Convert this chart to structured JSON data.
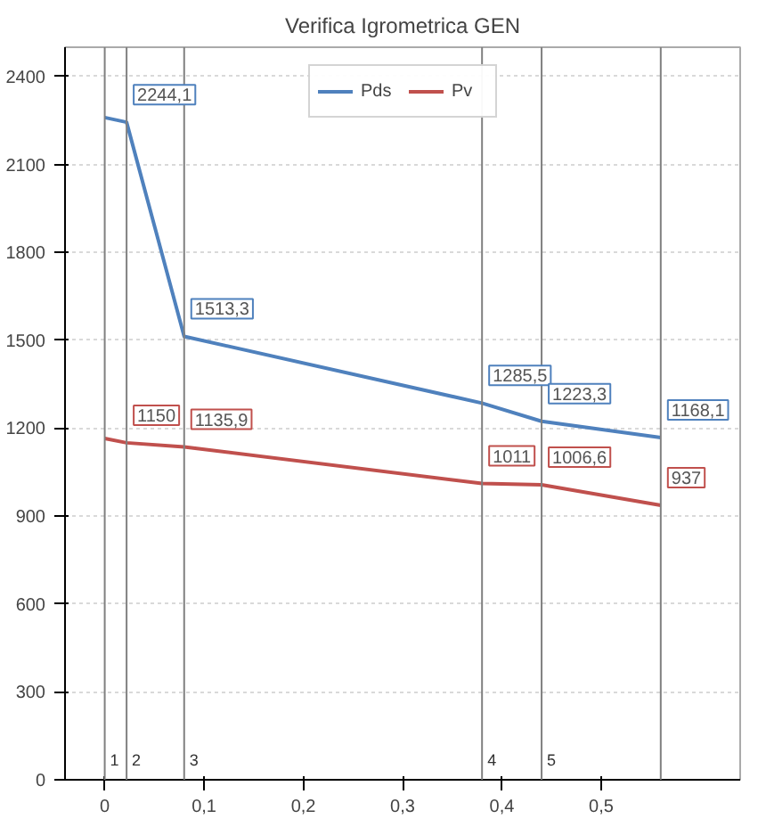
{
  "chart_data": {
    "type": "line",
    "title": "Verifica Igrometrica GEN",
    "x": [
      0,
      0.022,
      0.08,
      0.38,
      0.44,
      0.56
    ],
    "series": [
      {
        "name": "Pds",
        "color": "#4f81bd",
        "values": [
          2260,
          2244.1,
          1513.3,
          1285.5,
          1223.3,
          1168.1
        ],
        "value_labels": [
          null,
          "2244,1",
          "1513,3",
          "1285,5",
          "1223,3",
          "1168,1"
        ]
      },
      {
        "name": "Pv",
        "color": "#c0504d",
        "values": [
          1165,
          1150,
          1135.9,
          1011,
          1006.6,
          937
        ],
        "value_labels": [
          null,
          "1150",
          "1135,9",
          "1011",
          "1006,6",
          "937"
        ]
      }
    ],
    "xlim": [
      -0.04,
      0.64
    ],
    "ylim": [
      0,
      2500
    ],
    "xticks": [
      {
        "value": 0,
        "label": "0"
      },
      {
        "value": 0.1,
        "label": "0,1"
      },
      {
        "value": 0.2,
        "label": "0,2"
      },
      {
        "value": 0.3,
        "label": "0,3"
      },
      {
        "value": 0.4,
        "label": "0,4"
      },
      {
        "value": 0.5,
        "label": "0,5"
      }
    ],
    "yticks": [
      0,
      300,
      600,
      900,
      1200,
      1500,
      1800,
      2100,
      2400
    ],
    "ref_lines": [
      {
        "axis": "x",
        "value": 0,
        "color": "#808080"
      },
      {
        "axis": "x",
        "value": 0.022,
        "color": "#808080"
      },
      {
        "axis": "x",
        "value": 0.08,
        "color": "#808080"
      },
      {
        "axis": "x",
        "value": 0.38,
        "color": "#808080"
      },
      {
        "axis": "x",
        "value": 0.44,
        "color": "#808080"
      },
      {
        "axis": "x",
        "value": 0.56,
        "color": "#808080"
      }
    ],
    "annotations": [
      "1",
      "2",
      "3",
      "4",
      "5"
    ],
    "grid": "y",
    "legend": "top",
    "marker": "none",
    "line_style": "solid"
  }
}
